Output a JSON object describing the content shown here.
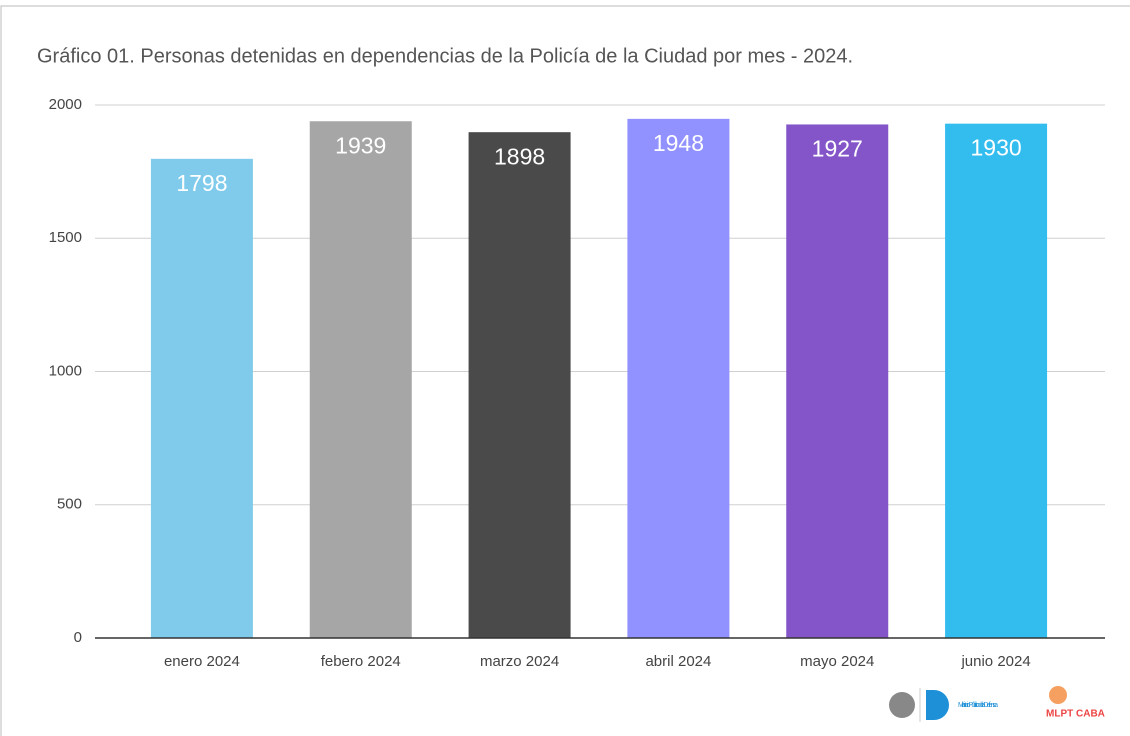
{
  "chart_data": {
    "type": "bar",
    "title": "Gráfico 01. Personas detenidas en dependencias de la Policía de la Ciudad por mes - 2024.",
    "categories": [
      "enero 2024",
      "febero 2024",
      "marzo 2024",
      "abril 2024",
      "mayo 2024",
      "junio 2024"
    ],
    "values": [
      1798,
      1939,
      1898,
      1948,
      1927,
      1930
    ],
    "colors": [
      "#80cbeb",
      "#a6a6a6",
      "#4a4a4a",
      "#9191ff",
      "#8455c8",
      "#33bdee"
    ],
    "ylim": [
      0,
      2000
    ],
    "yticks": [
      0,
      500,
      1000,
      1500,
      2000
    ],
    "grid": true
  },
  "logos": [
    "Ministerio Público de la Defensa",
    "MLPT CABA"
  ]
}
